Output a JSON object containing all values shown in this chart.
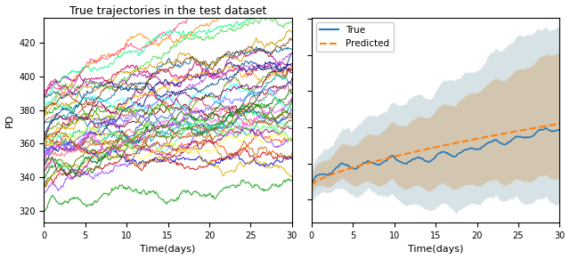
{
  "title_left": "True trajectories in the test dataset",
  "xlabel": "Time(days)",
  "ylabel_left": "PD",
  "xlim": [
    0,
    30
  ],
  "ylim_left": [
    313,
    435
  ],
  "xticks": [
    0,
    5,
    10,
    15,
    20,
    25,
    30
  ],
  "yticks_left": [
    320,
    340,
    360,
    380,
    400,
    420
  ],
  "n_trajectories": 40,
  "time_steps": 300,
  "seed": 7,
  "true_color": "#2878B5",
  "pred_color": "#FF7F0E",
  "fill_true_color": "#AEC6CF",
  "fill_pred_color": "#D2B48C",
  "fill_true_alpha": 0.5,
  "fill_pred_alpha": 0.6,
  "legend_entries": [
    "True",
    "Predicted"
  ],
  "title_fontsize": 9,
  "label_fontsize": 8,
  "tick_fontsize": 7
}
